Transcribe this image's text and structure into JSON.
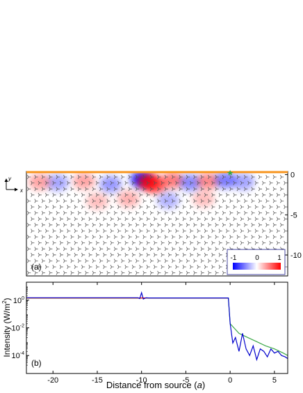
{
  "chart_data": [
    {
      "type": "heatmap",
      "panel_label": "(a)",
      "coordinate_axes": {
        "y_label": "y",
        "x_label": "x"
      },
      "yticks": [
        0,
        -5,
        -10
      ],
      "ylim": [
        -12.6,
        0.4
      ],
      "xlim": [
        -23,
        6.5
      ],
      "colorbar": {
        "ticks": [
          "-1",
          "0",
          "1"
        ],
        "min_color": "#0000ff",
        "max_color": "#ff0000",
        "mid_color": "#ffffff"
      },
      "surface_color": "#f7941d",
      "source_marker_color": "#3aa845",
      "field_hotspots": [
        {
          "x": -10.0,
          "y": -0.6,
          "value": -0.9
        },
        {
          "x": -9.2,
          "y": -0.9,
          "value": 0.8
        },
        {
          "x": -8.4,
          "y": -1.3,
          "value": 0.6
        },
        {
          "x": -6.5,
          "y": -0.7,
          "value": 0.5
        },
        {
          "x": -4.5,
          "y": -1.0,
          "value": -0.45
        },
        {
          "x": -2.5,
          "y": -0.8,
          "value": 0.45
        },
        {
          "x": -0.5,
          "y": -0.7,
          "value": -0.5
        },
        {
          "x": 1.5,
          "y": -0.9,
          "value": -0.35
        },
        {
          "x": -13.5,
          "y": -1.2,
          "value": -0.4
        },
        {
          "x": -16.5,
          "y": -0.8,
          "value": 0.35
        },
        {
          "x": -19.5,
          "y": -1.0,
          "value": -0.35
        },
        {
          "x": -21.5,
          "y": -0.9,
          "value": 0.35
        },
        {
          "x": -11.5,
          "y": -3.0,
          "value": 0.3
        },
        {
          "x": -7.0,
          "y": -3.2,
          "value": -0.3
        },
        {
          "x": -3.0,
          "y": -3.0,
          "value": 0.25
        },
        {
          "x": -15.0,
          "y": -3.3,
          "value": 0.25
        }
      ]
    },
    {
      "type": "line",
      "panel_label": "(b)",
      "xlabel": "Distance from source (a)",
      "ylabel": "Intensity (W/m²)",
      "ylabel_parts": {
        "main": "Intensity (W/m",
        "sup": "2",
        "tail": ")"
      },
      "xlabel_parts": {
        "main": "Distance from source (",
        "italic": "a",
        "tail": ")"
      },
      "yscale": "log",
      "xlim": [
        -23,
        6.5
      ],
      "ylim_exp": [
        -5.3,
        1.3
      ],
      "xticks": [
        -20,
        -15,
        -10,
        -5,
        0,
        5
      ],
      "yticks": [
        {
          "base": "10",
          "exp": "0"
        },
        {
          "base": "10",
          "exp": "-2"
        },
        {
          "base": "10",
          "exp": "-4"
        }
      ],
      "ytick_exps": [
        0,
        -2,
        -4
      ],
      "series": [
        {
          "color": "#0000cc",
          "x": [
            -23,
            -10.4,
            -10.2,
            -10.0,
            -9.8,
            -9.5,
            -9.2,
            -0.2,
            0,
            0.3,
            0.6,
            1.0,
            1.4,
            1.8,
            2.2,
            2.6,
            3.0,
            3.4,
            3.8,
            4.2,
            4.6,
            5.0,
            5.4,
            5.8,
            6.2,
            6.5
          ],
          "y": [
            1.5,
            1.5,
            1.3,
            3.5,
            1.2,
            1.5,
            1.45,
            1.45,
            0.02,
            0.0008,
            0.002,
            0.0002,
            0.004,
            0.0003,
            0.0001,
            0.0005,
            5e-05,
            0.0003,
            0.0002,
            8e-05,
            0.0003,
            0.00015,
            0.0002,
            0.0001,
            8e-05,
            6e-05
          ]
        },
        {
          "color": "#3aa845",
          "x": [
            -23,
            -0.2,
            0,
            1,
            2,
            3,
            4,
            5,
            6,
            6.5
          ],
          "y": [
            1.4,
            1.4,
            0.02,
            0.004,
            0.002,
            0.001,
            0.0005,
            0.0003,
            0.00015,
            0.0001
          ]
        },
        {
          "color": "#ff0000",
          "x": [
            -23,
            -0.2
          ],
          "y": [
            1.45,
            1.45
          ]
        }
      ]
    }
  ]
}
